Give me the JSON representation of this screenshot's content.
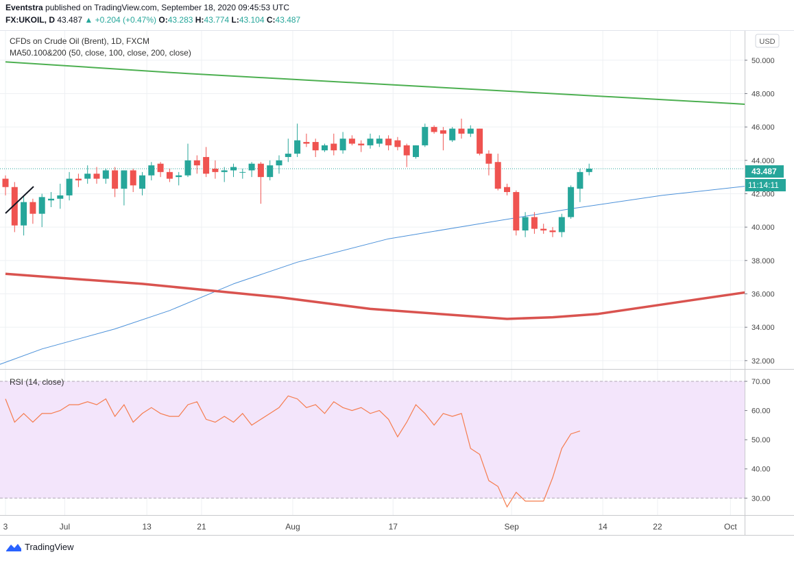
{
  "header": {
    "publisher": "Eventstra",
    "published_text": "published on TradingView.com, September 18, 2020 09:45:53 UTC",
    "symbol": "FX:UKOIL, D",
    "last": "43.487",
    "change": "+0.204 (+0.47%)",
    "o_label": "O:",
    "o": "43.283",
    "h_label": "H:",
    "h": "43.774",
    "l_label": "L:",
    "l": "43.104",
    "c_label": "C:",
    "c": "43.487"
  },
  "legend": {
    "title": "CFDs on Crude Oil (Brent), 1D, FXCM",
    "ma": "MA50.100&200 (50, close, 100, close, 200, close)",
    "rsi": "RSI (14, close)"
  },
  "currency_button": "USD",
  "price_tag": "43.487",
  "countdown_tag": "11:14:11",
  "brand": "TradingView",
  "colors": {
    "up": "#26a69a",
    "down": "#ef5350",
    "ma50": "#4a90d9",
    "ma100": "#4caf50",
    "ma200": "#d9534f",
    "rsi_line": "#f57c4e",
    "rsi_band": "#f3e5fb"
  },
  "chart_data": [
    {
      "type": "candlestick",
      "title": "CFDs on Crude Oil (Brent), 1D, FXCM",
      "x_tick_labels": [
        "3",
        "Jul",
        "13",
        "21",
        "Aug",
        "17",
        "Sep",
        "14",
        "22",
        "Oct"
      ],
      "y_tick_labels": [
        "50.000",
        "48.000",
        "46.000",
        "44.000",
        "42.000",
        "40.000",
        "38.000",
        "36.000",
        "34.000",
        "32.000"
      ],
      "ylim": [
        31.5,
        51.8
      ],
      "grid": true,
      "candles": [
        {
          "o": 42.9,
          "h": 43.1,
          "l": 41.9,
          "c": 42.4
        },
        {
          "o": 42.4,
          "h": 42.7,
          "l": 39.7,
          "c": 40.1
        },
        {
          "o": 40.1,
          "h": 41.9,
          "l": 39.5,
          "c": 41.5
        },
        {
          "o": 41.5,
          "h": 41.7,
          "l": 40.2,
          "c": 40.8
        },
        {
          "o": 40.8,
          "h": 42.0,
          "l": 40.0,
          "c": 41.8
        },
        {
          "o": 41.6,
          "h": 42.1,
          "l": 41.2,
          "c": 41.7
        },
        {
          "o": 41.7,
          "h": 42.6,
          "l": 41.1,
          "c": 41.9
        },
        {
          "o": 41.9,
          "h": 43.3,
          "l": 41.6,
          "c": 42.9
        },
        {
          "o": 42.9,
          "h": 43.2,
          "l": 42.4,
          "c": 42.8
        },
        {
          "o": 42.9,
          "h": 43.7,
          "l": 42.6,
          "c": 43.2
        },
        {
          "o": 43.2,
          "h": 43.6,
          "l": 42.6,
          "c": 42.9
        },
        {
          "o": 42.9,
          "h": 43.5,
          "l": 42.6,
          "c": 43.4
        },
        {
          "o": 43.4,
          "h": 43.6,
          "l": 41.8,
          "c": 42.3
        },
        {
          "o": 42.3,
          "h": 43.4,
          "l": 41.3,
          "c": 43.4
        },
        {
          "o": 43.4,
          "h": 43.5,
          "l": 42.1,
          "c": 42.5
        },
        {
          "o": 42.3,
          "h": 43.3,
          "l": 41.9,
          "c": 43.1
        },
        {
          "o": 43.1,
          "h": 43.9,
          "l": 42.8,
          "c": 43.7
        },
        {
          "o": 43.8,
          "h": 43.9,
          "l": 43.0,
          "c": 43.3
        },
        {
          "o": 43.3,
          "h": 43.5,
          "l": 42.7,
          "c": 42.9
        },
        {
          "o": 43.0,
          "h": 43.3,
          "l": 42.5,
          "c": 43.1
        },
        {
          "o": 43.1,
          "h": 45.0,
          "l": 43.0,
          "c": 44.0
        },
        {
          "o": 44.0,
          "h": 44.3,
          "l": 43.2,
          "c": 43.7
        },
        {
          "o": 44.2,
          "h": 44.8,
          "l": 43.0,
          "c": 43.2
        },
        {
          "o": 43.5,
          "h": 44.0,
          "l": 42.9,
          "c": 43.3
        },
        {
          "o": 43.3,
          "h": 43.6,
          "l": 42.7,
          "c": 43.4
        },
        {
          "o": 43.4,
          "h": 43.8,
          "l": 43.0,
          "c": 43.6
        },
        {
          "o": 43.3,
          "h": 43.5,
          "l": 42.9,
          "c": 43.3
        },
        {
          "o": 43.4,
          "h": 43.9,
          "l": 43.0,
          "c": 43.8
        },
        {
          "o": 43.8,
          "h": 43.9,
          "l": 41.4,
          "c": 43.0
        },
        {
          "o": 43.0,
          "h": 44.0,
          "l": 42.8,
          "c": 43.7
        },
        {
          "o": 43.7,
          "h": 44.3,
          "l": 43.2,
          "c": 44.0
        },
        {
          "o": 44.2,
          "h": 45.3,
          "l": 43.9,
          "c": 44.4
        },
        {
          "o": 44.4,
          "h": 46.2,
          "l": 44.2,
          "c": 45.2
        },
        {
          "o": 45.1,
          "h": 45.6,
          "l": 44.8,
          "c": 45.0
        },
        {
          "o": 45.1,
          "h": 45.3,
          "l": 44.2,
          "c": 44.6
        },
        {
          "o": 44.6,
          "h": 45.0,
          "l": 44.5,
          "c": 44.9
        },
        {
          "o": 45.0,
          "h": 45.6,
          "l": 44.3,
          "c": 44.6
        },
        {
          "o": 44.6,
          "h": 45.7,
          "l": 44.4,
          "c": 45.3
        },
        {
          "o": 45.3,
          "h": 45.5,
          "l": 44.9,
          "c": 45.0
        },
        {
          "o": 45.0,
          "h": 45.2,
          "l": 44.5,
          "c": 44.9
        },
        {
          "o": 44.9,
          "h": 45.6,
          "l": 44.7,
          "c": 45.3
        },
        {
          "o": 45.0,
          "h": 45.5,
          "l": 44.8,
          "c": 45.3
        },
        {
          "o": 45.3,
          "h": 45.5,
          "l": 44.6,
          "c": 44.9
        },
        {
          "o": 45.2,
          "h": 45.4,
          "l": 44.6,
          "c": 44.8
        },
        {
          "o": 44.9,
          "h": 45.0,
          "l": 43.6,
          "c": 44.3
        },
        {
          "o": 44.2,
          "h": 44.9,
          "l": 44.1,
          "c": 44.9
        },
        {
          "o": 44.9,
          "h": 46.2,
          "l": 44.8,
          "c": 46.0
        },
        {
          "o": 46.0,
          "h": 46.1,
          "l": 45.6,
          "c": 45.7
        },
        {
          "o": 45.8,
          "h": 46.0,
          "l": 44.6,
          "c": 45.6
        },
        {
          "o": 45.2,
          "h": 46.0,
          "l": 45.1,
          "c": 45.9
        },
        {
          "o": 45.9,
          "h": 46.5,
          "l": 45.3,
          "c": 45.6
        },
        {
          "o": 45.6,
          "h": 46.1,
          "l": 45.4,
          "c": 45.9
        },
        {
          "o": 45.9,
          "h": 45.9,
          "l": 44.3,
          "c": 44.4
        },
        {
          "o": 44.4,
          "h": 44.6,
          "l": 43.1,
          "c": 43.8
        },
        {
          "o": 43.9,
          "h": 44.4,
          "l": 42.2,
          "c": 42.3
        },
        {
          "o": 42.4,
          "h": 42.6,
          "l": 41.9,
          "c": 42.1
        },
        {
          "o": 42.1,
          "h": 42.2,
          "l": 39.5,
          "c": 39.8
        },
        {
          "o": 39.8,
          "h": 40.9,
          "l": 39.4,
          "c": 40.6
        },
        {
          "o": 40.6,
          "h": 40.9,
          "l": 39.6,
          "c": 39.9
        },
        {
          "o": 39.9,
          "h": 40.2,
          "l": 39.6,
          "c": 39.8
        },
        {
          "o": 39.8,
          "h": 40.0,
          "l": 39.4,
          "c": 39.7
        },
        {
          "o": 39.7,
          "h": 40.8,
          "l": 39.4,
          "c": 40.6
        },
        {
          "o": 40.6,
          "h": 42.5,
          "l": 40.5,
          "c": 42.4
        },
        {
          "o": 42.3,
          "h": 43.5,
          "l": 41.5,
          "c": 43.3
        },
        {
          "o": 43.3,
          "h": 43.8,
          "l": 43.1,
          "c": 43.5
        }
      ],
      "overlays": [
        {
          "name": "MA 50",
          "points": [
            [
              -12,
              29.5
            ],
            [
              4,
              32.7
            ],
            [
              8,
              33.3
            ],
            [
              12,
              33.9
            ],
            [
              18,
              35.0
            ],
            [
              25,
              36.6
            ],
            [
              32,
              37.9
            ],
            [
              42,
              39.3
            ],
            [
              52,
              40.2
            ],
            [
              62,
              41.1
            ],
            [
              72,
              41.9
            ],
            [
              82,
              42.5
            ],
            [
              92,
              43.1
            ],
            [
              102,
              43.4
            ],
            [
              106,
              43.6
            ],
            [
              114,
              43.9
            ],
            [
              120,
              44.0
            ],
            [
              128,
              43.9
            ],
            [
              134,
              43.7
            ],
            [
              139,
              43.7
            ]
          ]
        },
        {
          "name": "MA 100",
          "points": [
            [
              0,
              49.9
            ],
            [
              20,
              49.2
            ],
            [
              40,
              48.6
            ],
            [
              60,
              48.0
            ],
            [
              80,
              47.4
            ],
            [
              100,
              46.7
            ],
            [
              120,
              45.8
            ],
            [
              139,
              44.1
            ]
          ]
        },
        {
          "name": "MA 200",
          "points": [
            [
              0,
              37.2
            ],
            [
              15,
              36.6
            ],
            [
              30,
              35.8
            ],
            [
              40,
              35.1
            ],
            [
              50,
              34.7
            ],
            [
              55,
              34.5
            ],
            [
              60,
              34.6
            ],
            [
              65,
              34.8
            ],
            [
              75,
              35.6
            ],
            [
              85,
              36.4
            ],
            [
              95,
              37.2
            ],
            [
              105,
              37.8
            ],
            [
              115,
              38.4
            ],
            [
              125,
              39.2
            ],
            [
              131,
              39.9
            ],
            [
              136,
              40.4
            ],
            [
              139,
              40.8
            ]
          ]
        }
      ]
    },
    {
      "type": "line",
      "title": "RSI (14, close)",
      "y_tick_labels": [
        "70.00",
        "60.00",
        "50.00",
        "40.00",
        "30.00"
      ],
      "ylim": [
        24.2,
        74.0
      ],
      "band": [
        30,
        70
      ],
      "values": [
        64,
        56,
        59,
        56,
        59,
        59,
        60,
        62,
        62,
        63,
        62,
        64,
        58,
        62,
        56,
        59,
        61,
        59,
        58,
        58,
        62,
        63,
        57,
        56,
        58,
        56,
        59,
        55,
        57,
        59,
        61,
        65,
        64,
        61,
        62,
        59,
        63,
        61,
        60,
        61,
        59,
        60,
        57,
        51,
        56,
        62,
        59,
        55,
        59,
        58,
        59,
        47,
        45,
        36,
        34,
        27,
        32,
        29,
        29,
        29,
        37,
        47,
        52,
        53
      ]
    }
  ]
}
